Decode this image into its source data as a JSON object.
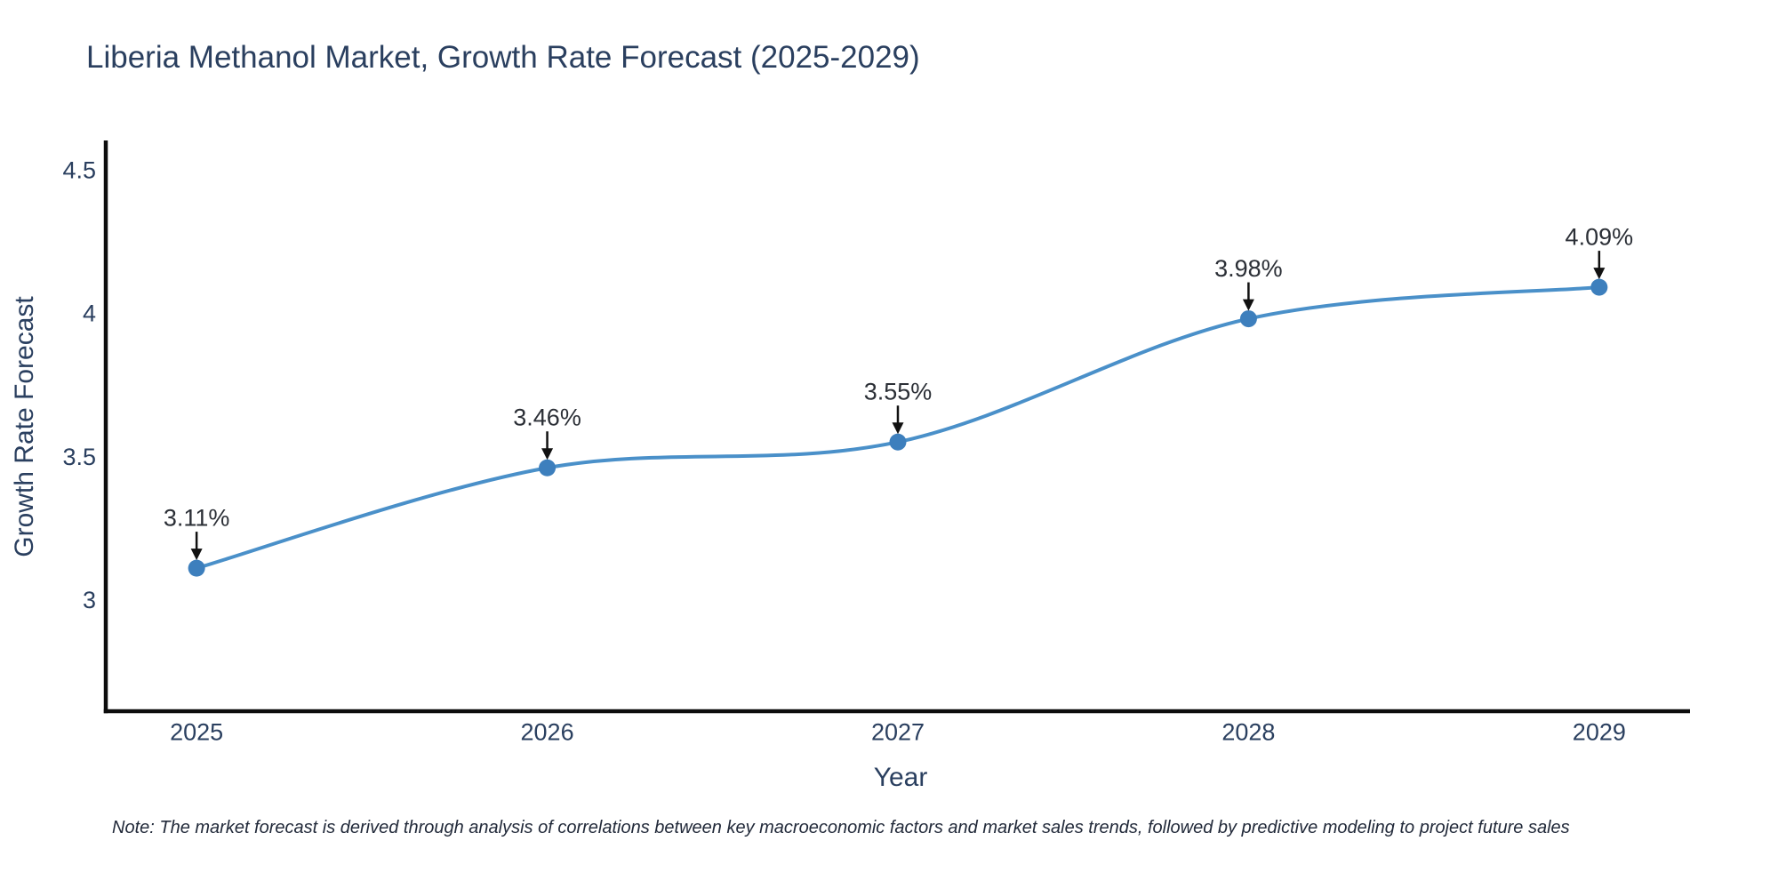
{
  "header": {
    "title": "Liberia Methanol Market, Growth Rate Forecast (2025-2029)"
  },
  "chart_data": {
    "type": "line",
    "curve": "spline",
    "title": "Liberia Methanol Market, Growth Rate Forecast (2025-2029)",
    "xlabel": "Year",
    "ylabel": "Growth Rate Forecast",
    "x": [
      2025,
      2026,
      2027,
      2028,
      2029
    ],
    "series": [
      {
        "name": "Growth Rate Forecast",
        "values": [
          3.11,
          3.46,
          3.55,
          3.98,
          4.09
        ]
      }
    ],
    "point_labels": [
      "3.11%",
      "3.46%",
      "3.55%",
      "3.98%",
      "4.09%"
    ],
    "xticks": [
      "2025",
      "2026",
      "2027",
      "2028",
      "2029"
    ],
    "xtick_values": [
      2025,
      2026,
      2027,
      2028,
      2029
    ],
    "yticks": [
      "3",
      "3.5",
      "4",
      "4.5"
    ],
    "ytick_values": [
      3,
      3.5,
      4,
      4.5
    ],
    "xlim": [
      2024.736,
      2029.259
    ],
    "ylim": [
      2.611,
      4.602
    ],
    "grid": false,
    "legend": "none"
  },
  "colors": {
    "title": "#2a3f5f",
    "tick_label": "#2a3f5f",
    "axis_line": "#0d0d0d",
    "series_line": "#4a90c9",
    "marker": "#3d7fbd",
    "annotation_text": "#2b2f36",
    "annotation_arrow": "#111111",
    "note_text": "#222a3a",
    "background": "#ffffff"
  },
  "footnote": {
    "text": "Note: The market forecast is derived through analysis of correlations between key macroeconomic factors and market sales trends, followed by predictive modeling to project future sales"
  }
}
